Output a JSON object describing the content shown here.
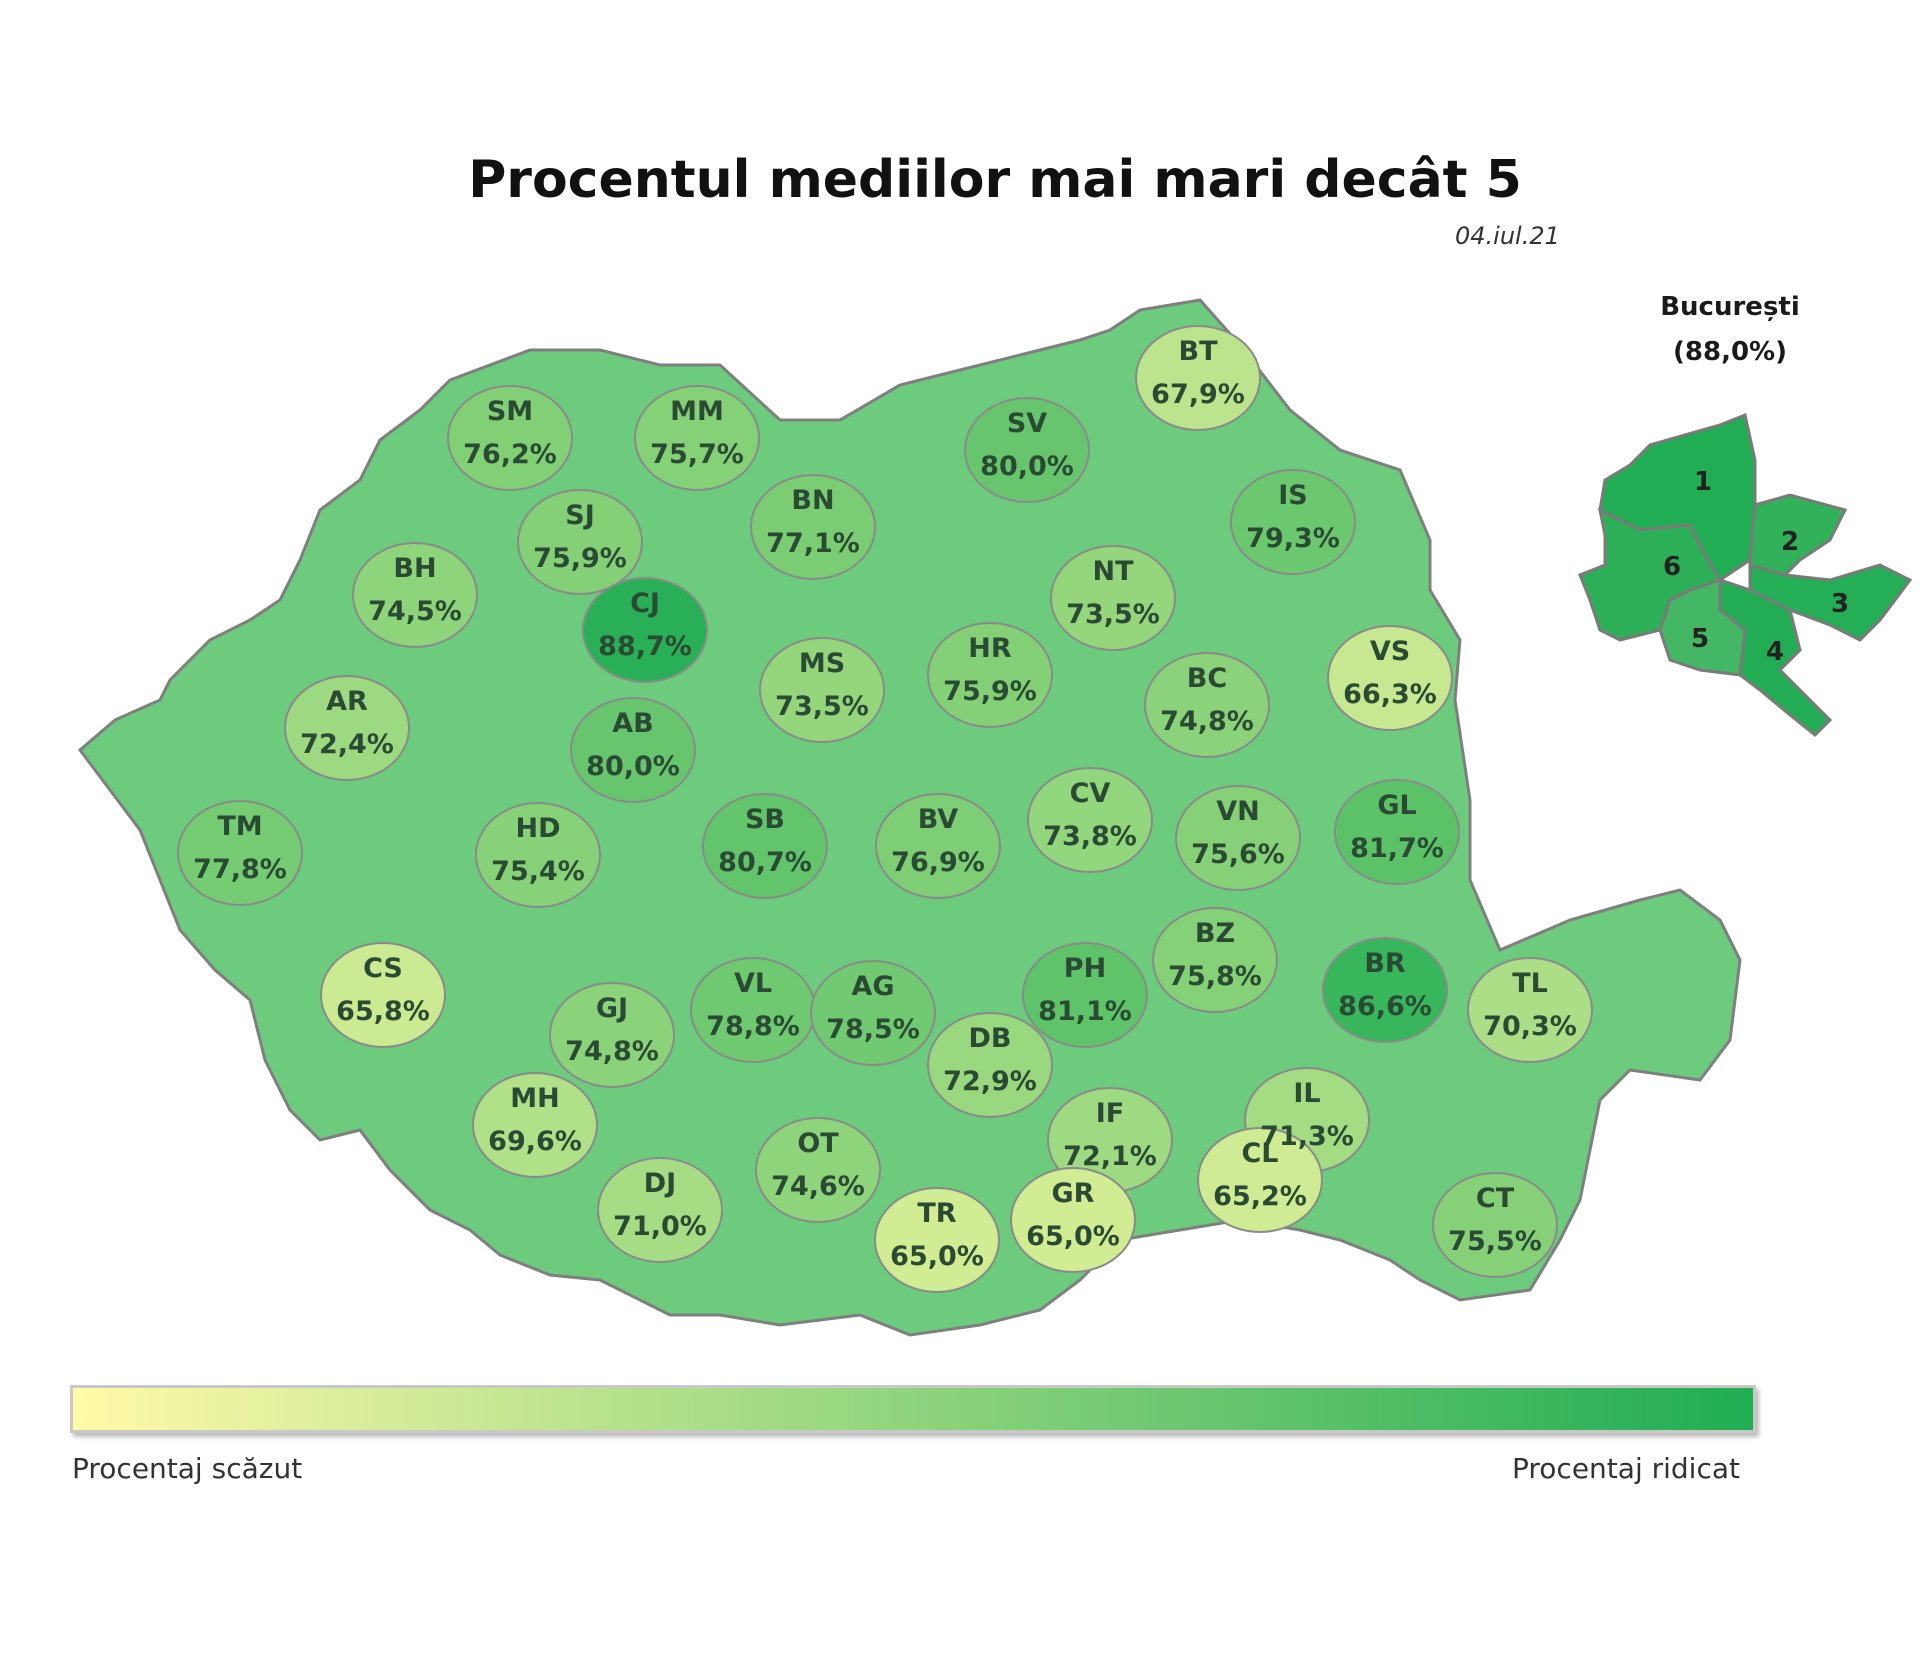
{
  "title": "Procentul mediilor mai mari decât 5",
  "date": "04.iul.21",
  "bucuresti": {
    "title": "București",
    "value_text": "(88,0%)",
    "sectors": [
      "1",
      "2",
      "3",
      "4",
      "5",
      "6"
    ]
  },
  "legend": {
    "low_label": "Procentaj scăzut",
    "high_label": "Procentaj ridicat",
    "color_low": "#fffaa8",
    "color_high": "#20ad53"
  },
  "counties": [
    {
      "code": "SM",
      "value": "76,2%",
      "pct": 76.2
    },
    {
      "code": "MM",
      "value": "75,7%",
      "pct": 75.7
    },
    {
      "code": "BT",
      "value": "67,9%",
      "pct": 67.9
    },
    {
      "code": "SV",
      "value": "80,0%",
      "pct": 80.0
    },
    {
      "code": "SJ",
      "value": "75,9%",
      "pct": 75.9
    },
    {
      "code": "BN",
      "value": "77,1%",
      "pct": 77.1
    },
    {
      "code": "IS",
      "value": "79,3%",
      "pct": 79.3
    },
    {
      "code": "BH",
      "value": "74,5%",
      "pct": 74.5
    },
    {
      "code": "CJ",
      "value": "88,7%",
      "pct": 88.7
    },
    {
      "code": "NT",
      "value": "73,5%",
      "pct": 73.5
    },
    {
      "code": "MS",
      "value": "73,5%",
      "pct": 73.5
    },
    {
      "code": "HR",
      "value": "75,9%",
      "pct": 75.9
    },
    {
      "code": "BC",
      "value": "74,8%",
      "pct": 74.8
    },
    {
      "code": "VS",
      "value": "66,3%",
      "pct": 66.3
    },
    {
      "code": "AR",
      "value": "72,4%",
      "pct": 72.4
    },
    {
      "code": "AB",
      "value": "80,0%",
      "pct": 80.0
    },
    {
      "code": "CV",
      "value": "73,8%",
      "pct": 73.8
    },
    {
      "code": "VN",
      "value": "75,6%",
      "pct": 75.6
    },
    {
      "code": "GL",
      "value": "81,7%",
      "pct": 81.7
    },
    {
      "code": "TM",
      "value": "77,8%",
      "pct": 77.8
    },
    {
      "code": "HD",
      "value": "75,4%",
      "pct": 75.4
    },
    {
      "code": "SB",
      "value": "80,7%",
      "pct": 80.7
    },
    {
      "code": "BV",
      "value": "76,9%",
      "pct": 76.9
    },
    {
      "code": "BZ",
      "value": "75,8%",
      "pct": 75.8
    },
    {
      "code": "BR",
      "value": "86,6%",
      "pct": 86.6
    },
    {
      "code": "CS",
      "value": "65,8%",
      "pct": 65.8
    },
    {
      "code": "GJ",
      "value": "74,8%",
      "pct": 74.8
    },
    {
      "code": "VL",
      "value": "78,8%",
      "pct": 78.8
    },
    {
      "code": "AG",
      "value": "78,5%",
      "pct": 78.5
    },
    {
      "code": "PH",
      "value": "81,1%",
      "pct": 81.1
    },
    {
      "code": "TL",
      "value": "70,3%",
      "pct": 70.3
    },
    {
      "code": "DB",
      "value": "72,9%",
      "pct": 72.9
    },
    {
      "code": "MH",
      "value": "69,6%",
      "pct": 69.6
    },
    {
      "code": "IL",
      "value": "71,3%",
      "pct": 71.3
    },
    {
      "code": "IF",
      "value": "72,1%",
      "pct": 72.1
    },
    {
      "code": "DJ",
      "value": "71,0%",
      "pct": 71.0
    },
    {
      "code": "OT",
      "value": "74,6%",
      "pct": 74.6
    },
    {
      "code": "CL",
      "value": "65,2%",
      "pct": 65.2
    },
    {
      "code": "CT",
      "value": "75,5%",
      "pct": 75.5
    },
    {
      "code": "TR",
      "value": "65,0%",
      "pct": 65.0
    },
    {
      "code": "GR",
      "value": "65,0%",
      "pct": 65.0
    }
  ]
}
